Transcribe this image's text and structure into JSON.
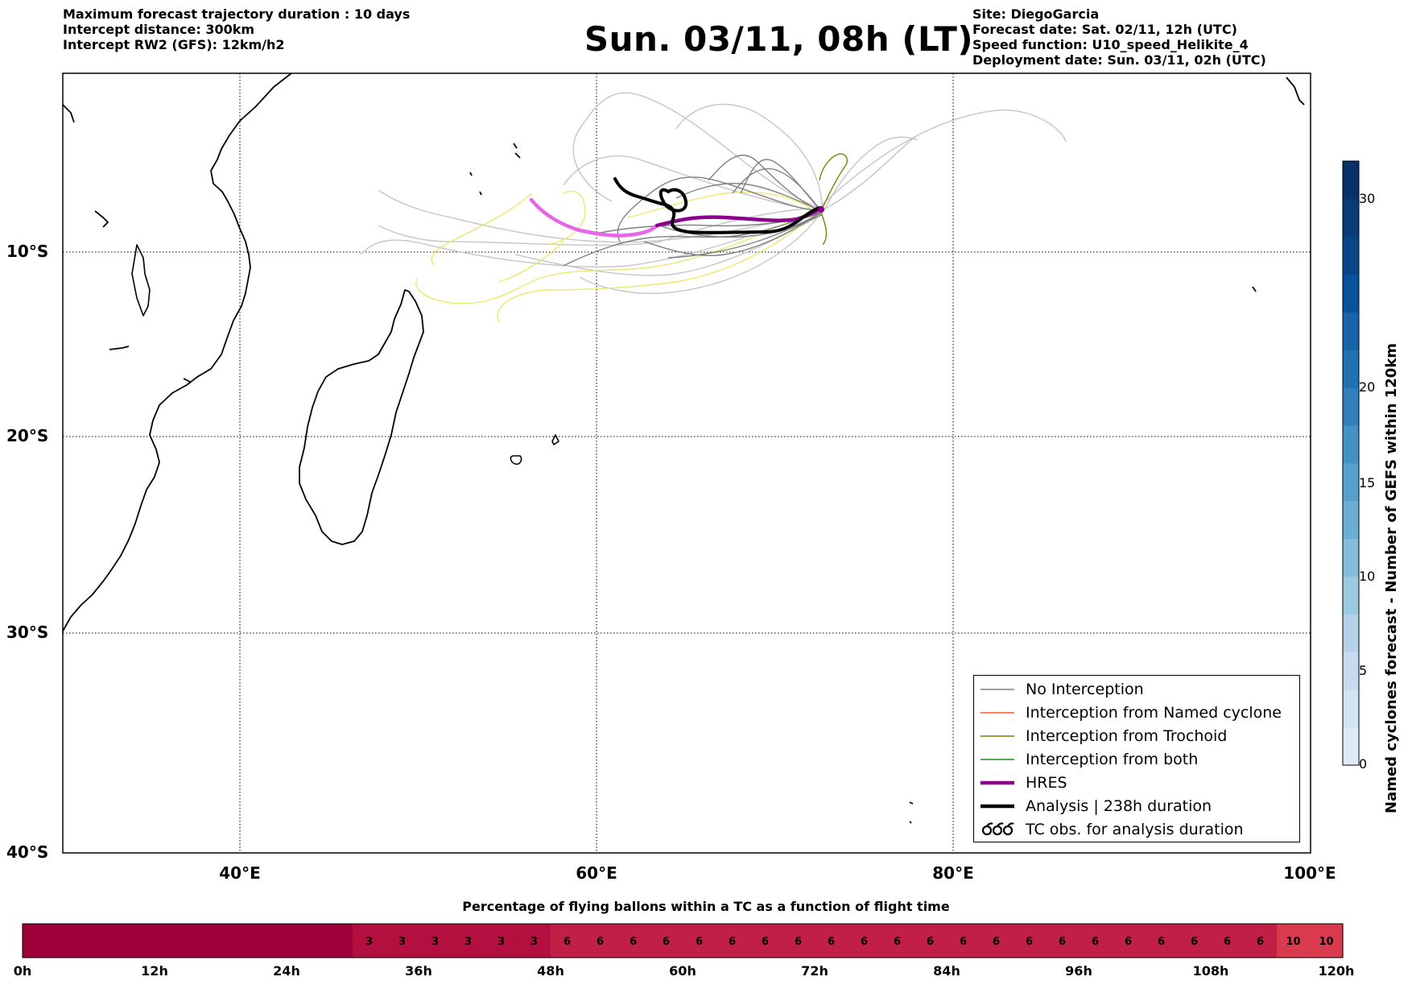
{
  "header": {
    "left": [
      "Maximum forecast trajectory duration : 10 days",
      "Intercept distance: 300km",
      "Intercept RW2 (GFS):  12km/h2"
    ],
    "right": [
      "Site: DiegoGarcia",
      "Forecast date: Sat. 02/11, 12h (UTC)",
      "Speed function: U10_speed_Helikite_4",
      "Deployment date: Sun. 03/11, 02h (UTC)"
    ],
    "title": "Sun. 03/11, 08h (LT)"
  },
  "map": {
    "lat_labels": [
      "10°S",
      "20°S",
      "30°S",
      "40°S"
    ],
    "lon_labels": [
      "40°E",
      "60°E",
      "80°E",
      "100°E"
    ],
    "extent": {
      "lon_min": 30,
      "lon_max": 100,
      "lat_min": -40,
      "lat_max": 0.5
    },
    "colors": {
      "no_interception": "#808080",
      "named_cyclone": "#ff5722",
      "trochoid": "#808000",
      "both": "#228b22",
      "hres": "#8b008b",
      "hres_early": "#e865e8",
      "analysis": "#000000",
      "gefs_spaghetti": "#c8c8c8",
      "yellow_members": "#ece96b"
    }
  },
  "legend": {
    "items": [
      {
        "label": "No Interception",
        "color": "#808080",
        "style": "thin"
      },
      {
        "label": "Interception from Named cyclone",
        "color": "#ff5722",
        "style": "thin"
      },
      {
        "label": "Interception from Trochoid",
        "color": "#808000",
        "style": "thin"
      },
      {
        "label": "Interception from both",
        "color": "#228b22",
        "style": "thin"
      },
      {
        "label": "HRES",
        "color": "#8b008b",
        "style": "thick"
      },
      {
        "label": "Analysis | 238h duration",
        "color": "#000000",
        "style": "thick"
      },
      {
        "label": "TC obs. for analysis duration",
        "color": "#000000",
        "style": "symbol"
      }
    ]
  },
  "colorbar": {
    "label": "Named cyclones forecast - Number of GEFS within 120km",
    "ticks": [
      "0",
      "5",
      "10",
      "15",
      "20",
      "30"
    ],
    "colors": [
      "#deebf7",
      "#d2e3f3",
      "#c6dbef",
      "#b4d3e9",
      "#9ecae1",
      "#85bcdb",
      "#6baed6",
      "#57a0ce",
      "#4292c6",
      "#3181bd",
      "#2171b5",
      "#1764ab",
      "#08519c",
      "#08468a",
      "#083b78",
      "#08306b"
    ]
  },
  "flight_time": {
    "title": "Percentage of flying ballons within a TC as a function of flight time",
    "axis_labels": [
      "0h",
      "12h",
      "24h",
      "36h",
      "48h",
      "60h",
      "72h",
      "84h",
      "96h",
      "108h",
      "120h"
    ],
    "cells": [
      0,
      0,
      0,
      0,
      0,
      0,
      0,
      0,
      0,
      0,
      3,
      3,
      3,
      3,
      3,
      3,
      6,
      6,
      6,
      6,
      6,
      6,
      6,
      6,
      6,
      6,
      6,
      6,
      6,
      6,
      6,
      6,
      6,
      6,
      6,
      6,
      6,
      6,
      10,
      10
    ],
    "colors": {
      "0": "#a0003a",
      "3": "#b3103f",
      "6": "#c21f47",
      "10": "#d93a4e"
    }
  }
}
